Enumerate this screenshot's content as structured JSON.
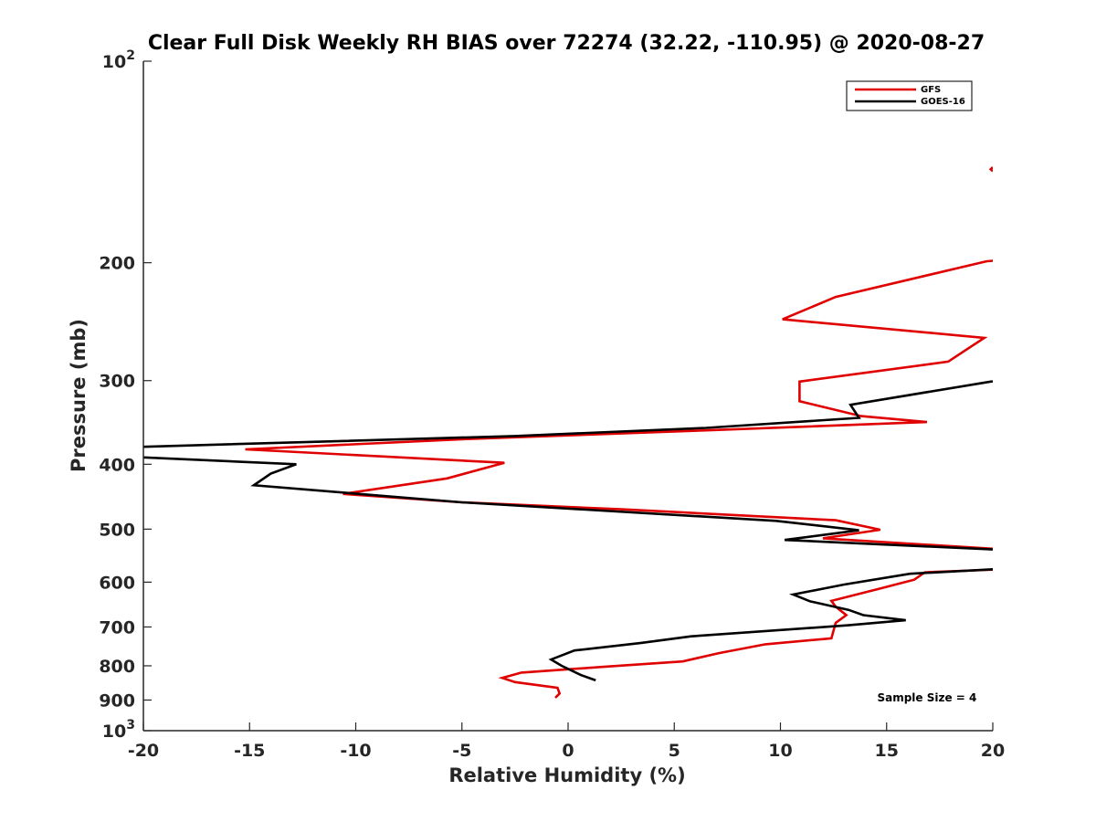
{
  "chart_data": {
    "type": "line",
    "title": "Clear Full Disk Weekly RH BIAS over 72274 (32.22, -110.95) @ 2020-08-27",
    "xlabel": "Relative Humidity (%)",
    "ylabel": "Pressure (mb)",
    "xlim": [
      -20,
      20
    ],
    "ylim": [
      100,
      1000
    ],
    "y_scale": "log",
    "y_reversed": true,
    "x_ticks": [
      "-20",
      "-15",
      "-10",
      "-5",
      "0",
      "5",
      "10",
      "15",
      "20"
    ],
    "y_ticks": [
      {
        "value": 100,
        "base": "10",
        "exp": "2"
      },
      {
        "value": 200,
        "base": "200",
        "exp": ""
      },
      {
        "value": 300,
        "base": "300",
        "exp": ""
      },
      {
        "value": 400,
        "base": "400",
        "exp": ""
      },
      {
        "value": 500,
        "base": "500",
        "exp": ""
      },
      {
        "value": 600,
        "base": "600",
        "exp": ""
      },
      {
        "value": 700,
        "base": "700",
        "exp": ""
      },
      {
        "value": 800,
        "base": "800",
        "exp": ""
      },
      {
        "value": 900,
        "base": "900",
        "exp": ""
      },
      {
        "value": 1000,
        "base": "10",
        "exp": "3"
      }
    ],
    "legend_position": "top-right",
    "grid": false,
    "series": [
      {
        "name": "GFS",
        "color": "#e00000",
        "segments": [
          [
            [
              20,
              144
            ],
            [
              19.9,
              145
            ],
            [
              20,
              146
            ]
          ],
          [
            [
              20.5,
              198
            ],
            [
              19.7,
              199
            ],
            [
              12.6,
              225
            ],
            [
              10.1,
              243
            ],
            [
              19.6,
              259
            ],
            [
              17.9,
              281
            ],
            [
              10.9,
              301
            ],
            [
              10.9,
              322
            ],
            [
              13.8,
              339
            ],
            [
              16.9,
              346
            ],
            [
              6.5,
              356
            ],
            [
              -5,
              367
            ],
            [
              -15.2,
              380
            ],
            [
              -3,
              398
            ],
            [
              -5.7,
              420
            ],
            [
              -10.6,
              443
            ],
            [
              -5,
              456
            ],
            [
              2.5,
              467
            ],
            [
              12.6,
              485
            ],
            [
              14.7,
              501
            ],
            [
              12,
              516
            ],
            [
              20.5,
              536
            ]
          ],
          [
            [
              20.5,
              574
            ],
            [
              16.8,
              580
            ],
            [
              16.3,
              595
            ],
            [
              14.8,
              612
            ],
            [
              12.4,
              640
            ],
            [
              12.6,
              653
            ],
            [
              13.1,
              672
            ],
            [
              12.6,
              690
            ],
            [
              12.4,
              728
            ],
            [
              9.3,
              743
            ],
            [
              7.1,
              766
            ],
            [
              5.4,
              788
            ],
            [
              1.6,
              803
            ],
            [
              -2.2,
              819
            ],
            [
              -3.1,
              834
            ],
            [
              -2.5,
              846
            ],
            [
              -0.5,
              863
            ],
            [
              -0.4,
              880
            ],
            [
              -0.6,
              893
            ]
          ]
        ]
      },
      {
        "name": "GOES-16",
        "color": "#000000",
        "segments": [
          [
            [
              20.5,
              300
            ],
            [
              19.9,
              301
            ],
            [
              13.3,
              326
            ],
            [
              13.7,
              341
            ],
            [
              6.5,
              353
            ],
            [
              -2.5,
              363
            ],
            [
              -20.5,
              377
            ]
          ],
          [
            [
              -20.5,
              390
            ],
            [
              -12.8,
              400
            ],
            [
              -14,
              413
            ],
            [
              -14.8,
              430
            ],
            [
              -5,
              456
            ],
            [
              9.8,
              486
            ],
            [
              13.7,
              502
            ],
            [
              10.2,
              519
            ],
            [
              20.5,
              537
            ]
          ],
          [
            [
              20.5,
              573
            ],
            [
              16.1,
              583
            ],
            [
              13,
              605
            ],
            [
              10.6,
              626
            ],
            [
              11.4,
              641
            ],
            [
              13.2,
              660
            ],
            [
              13.9,
              672
            ],
            [
              15.9,
              684
            ],
            [
              13.2,
              696
            ],
            [
              5.8,
              723
            ],
            [
              3.4,
              740
            ],
            [
              0.3,
              759
            ],
            [
              -0.8,
              783
            ],
            [
              -0.3,
              800
            ],
            [
              0.6,
              826
            ],
            [
              1.3,
              841
            ]
          ]
        ]
      }
    ],
    "annotations": [
      {
        "text": "Sample Size = 4",
        "x": 16.9,
        "y": 905
      }
    ]
  }
}
